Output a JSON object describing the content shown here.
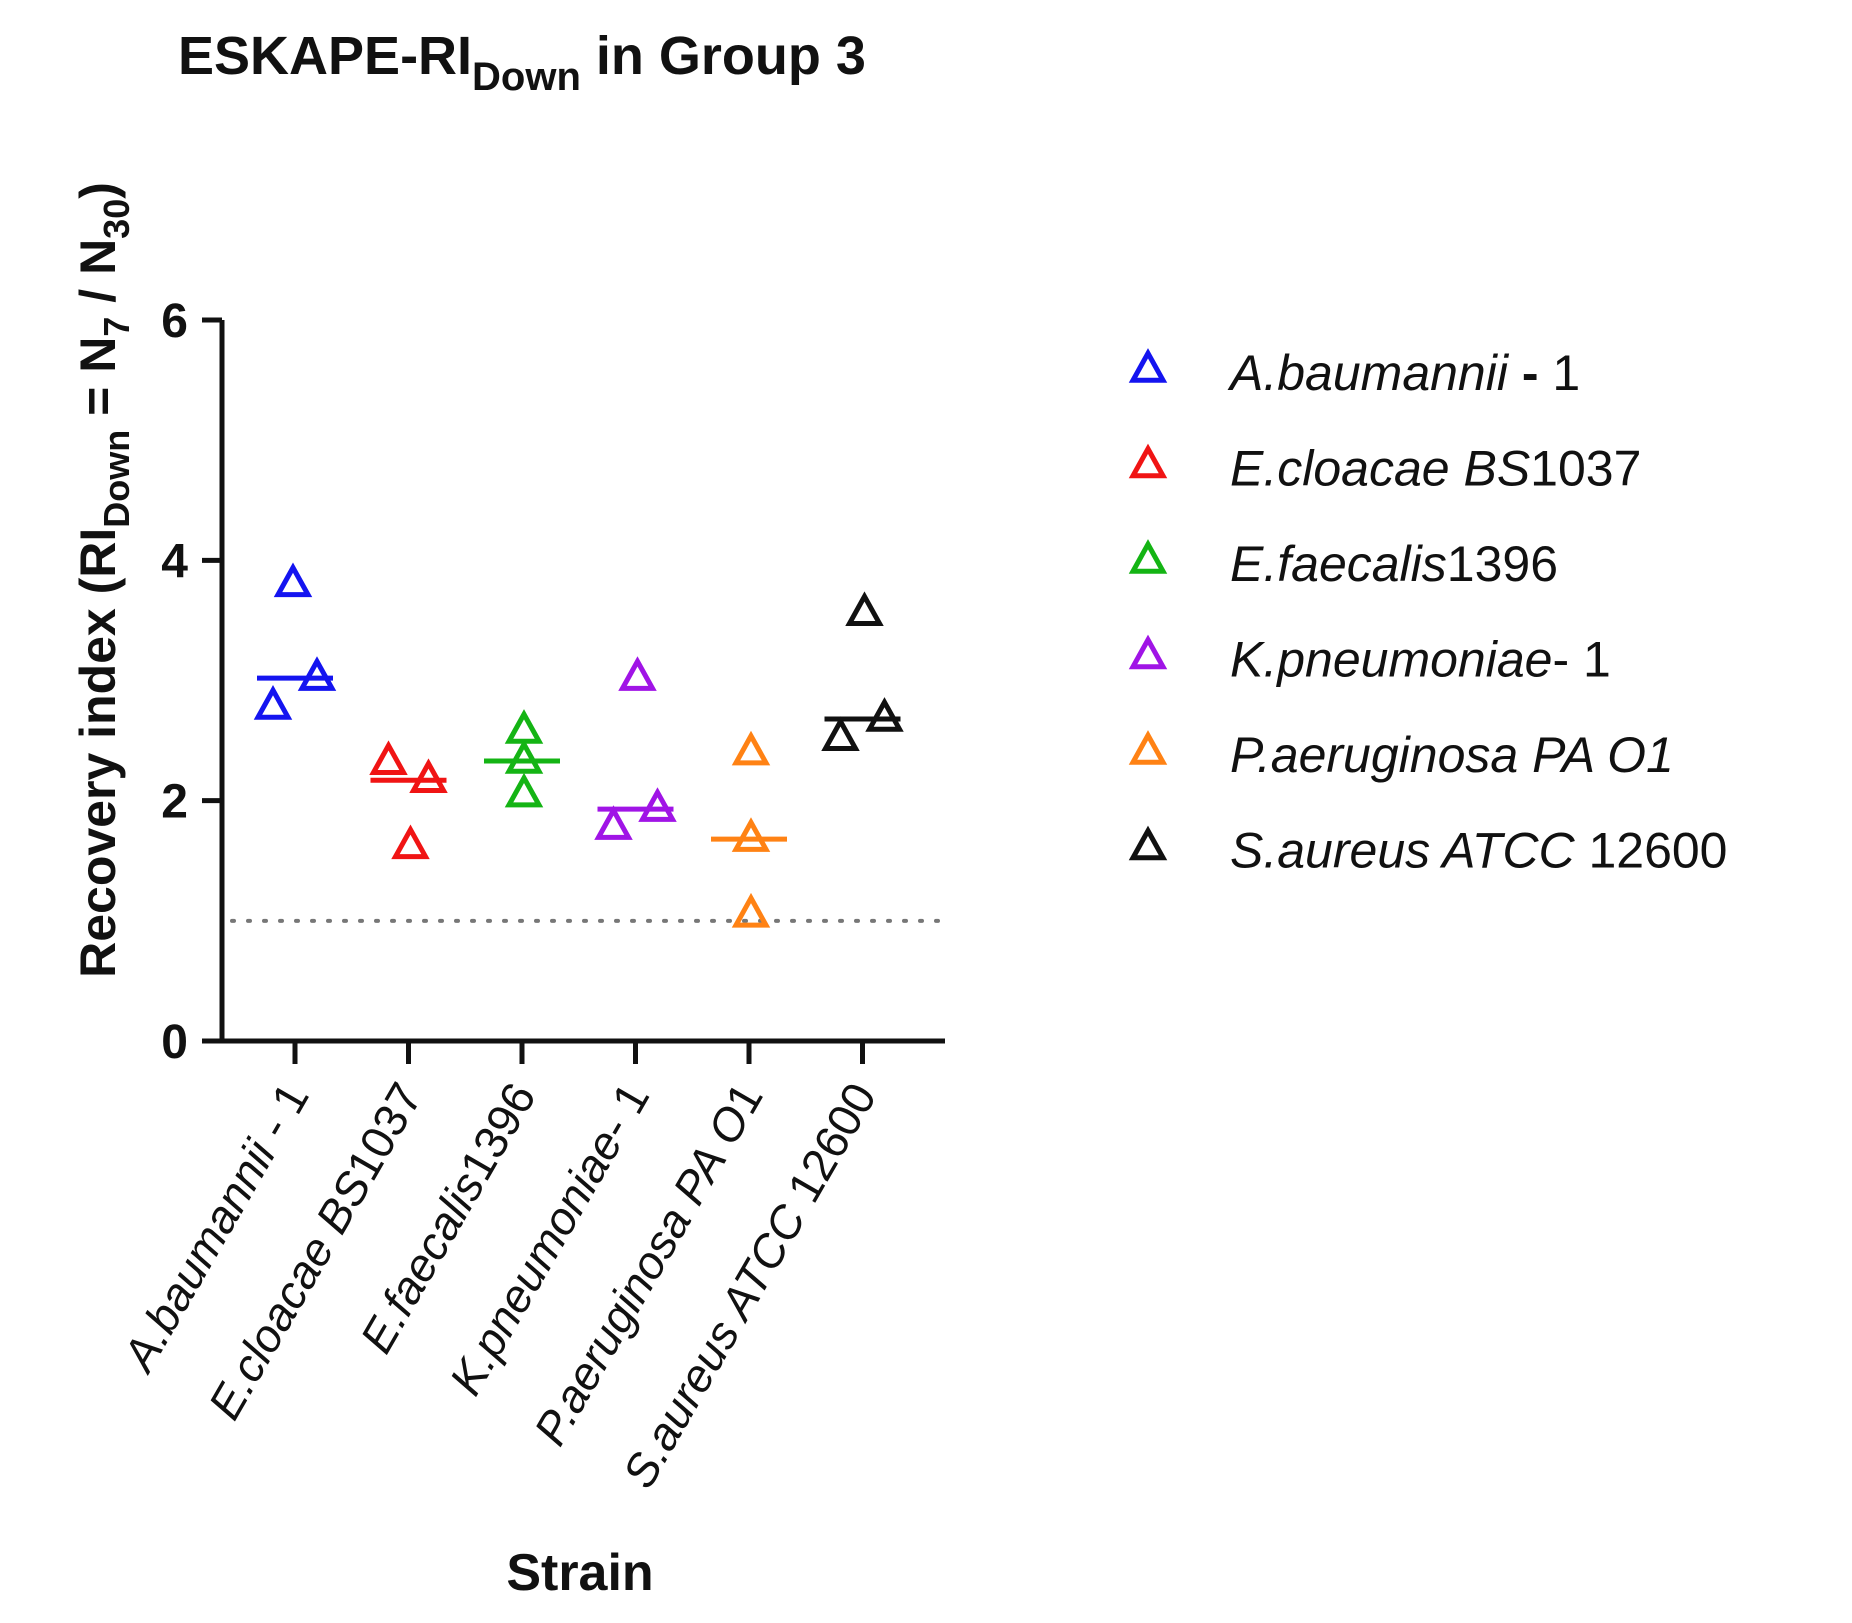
{
  "chart_data": {
    "type": "scatter",
    "title": {
      "main": "ESKAPE-RI",
      "sub": "Down",
      "rest": " in Group 3"
    },
    "xlabel": "Strain",
    "ylabel": {
      "prefix": "Recovery index (RI",
      "sub1": "Down",
      "mid1": " = N",
      "sub2": "7",
      "mid2": " / N",
      "sub3": "30",
      "suffix": ")"
    },
    "ylim": [
      0,
      6
    ],
    "yticks": [
      "0",
      "2",
      "4",
      "6"
    ],
    "reference_line": 1,
    "categories": [
      {
        "italic": "A.baumannii",
        "rest": " - 1"
      },
      {
        "italic": "E.cloacae BS",
        "rest": "1037"
      },
      {
        "italic": "E.faecalis",
        "rest": "1396"
      },
      {
        "italic": "K.pneumoniae",
        "rest": "- 1"
      },
      {
        "italic": "P.aeruginosa PA O",
        "rest": "1"
      },
      {
        "italic": "S.aureus ATCC",
        "rest": " 12600"
      }
    ],
    "legend": {
      "position": "right",
      "entries": [
        {
          "italic": "A.baumannii",
          "bold": " -",
          "rest": " 1"
        },
        {
          "italic": "E.cloacae BS",
          "bold": "",
          "rest": "1037"
        },
        {
          "italic": "E.faecalis",
          "bold": "",
          "rest": "1396"
        },
        {
          "italic": "K.pneumoniae",
          "bold": "",
          "rest": "- 1"
        },
        {
          "italic": "P.aeruginosa PA O1",
          "bold": "",
          "rest": ""
        },
        {
          "italic": "S.aureus ATCC",
          "bold": "",
          "rest": " 12600"
        }
      ]
    },
    "series": [
      {
        "name": "A.baumannii - 1",
        "color": "#1414f0",
        "values": [
          3.8,
          2.78,
          3.02
        ],
        "median": 3.02
      },
      {
        "name": "E.cloacae BS1037",
        "color": "#f01414",
        "values": [
          2.32,
          1.62,
          2.17
        ],
        "median": 2.17
      },
      {
        "name": "E.faecalis1396",
        "color": "#14b414",
        "values": [
          2.58,
          2.33,
          2.05
        ],
        "median": 2.33
      },
      {
        "name": "K.pneumoniae- 1",
        "color": "#a014e6",
        "values": [
          3.02,
          1.78,
          1.93
        ],
        "median": 1.93
      },
      {
        "name": "P.aeruginosa PA O1",
        "color": "#ff8214",
        "values": [
          2.4,
          1.68,
          1.05
        ],
        "median": 1.68
      },
      {
        "name": "S.aureus ATCC 12600",
        "color": "#111111",
        "values": [
          3.56,
          2.52,
          2.68
        ],
        "median": 2.68
      }
    ]
  }
}
